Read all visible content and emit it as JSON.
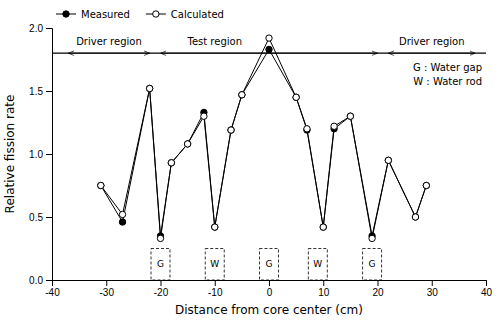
{
  "chart_data": {
    "type": "line",
    "xlabel": "Distance from core center (cm)",
    "ylabel": "Relative fission rate",
    "x": [
      -31,
      -27,
      -22,
      -20,
      -18,
      -15,
      -12,
      -10,
      -7,
      -5,
      0,
      5,
      7,
      10,
      12,
      15,
      19,
      22,
      27,
      29
    ],
    "series": [
      {
        "name": "Measured",
        "color": "black",
        "marker": "filled-circle",
        "line_style": "solid",
        "values": [
          0.75,
          0.46,
          1.52,
          0.35,
          0.93,
          1.08,
          1.33,
          0.42,
          1.19,
          1.47,
          1.83,
          1.45,
          1.19,
          0.42,
          1.2,
          1.3,
          0.35,
          0.95,
          0.5,
          0.75
        ]
      },
      {
        "name": "Calculated",
        "color": "black",
        "marker": "open-circle",
        "line_style": "solid",
        "values": [
          0.75,
          0.52,
          1.52,
          0.33,
          0.93,
          1.08,
          1.3,
          0.42,
          1.19,
          1.47,
          1.92,
          1.45,
          1.2,
          0.42,
          1.22,
          1.3,
          0.33,
          0.95,
          0.5,
          0.75
        ]
      }
    ],
    "xlim": [
      -40,
      40
    ],
    "xticks": [
      -40,
      -30,
      -20,
      -10,
      0,
      10,
      20,
      30,
      40
    ],
    "ylim": [
      0,
      2
    ],
    "yticks": [
      {
        "value": 0,
        "label": "0.0"
      },
      0.5,
      {
        "value": 1,
        "label": "1.0"
      },
      1.5,
      {
        "value": 2,
        "label": "2.0"
      }
    ],
    "hline": 1.8,
    "regions": [
      {
        "label": "Driver region",
        "start": -37,
        "end": -22
      },
      {
        "label": "Test region",
        "start": -20,
        "end": 20
      },
      {
        "label": "Driver region",
        "start": 22,
        "end": 38
      }
    ],
    "boxes": {
      "width": 3.5,
      "height": 0.25,
      "items": [
        {
          "x": -20,
          "label": "G"
        },
        {
          "x": -10,
          "label": "W"
        },
        {
          "x": 0,
          "label": "G"
        },
        {
          "x": 9,
          "label": "W"
        },
        {
          "x": 19,
          "label": "G"
        }
      ]
    },
    "notes": [
      "G : Water gap",
      "W : Water rod"
    ],
    "grid": false,
    "legend": "upper left"
  }
}
